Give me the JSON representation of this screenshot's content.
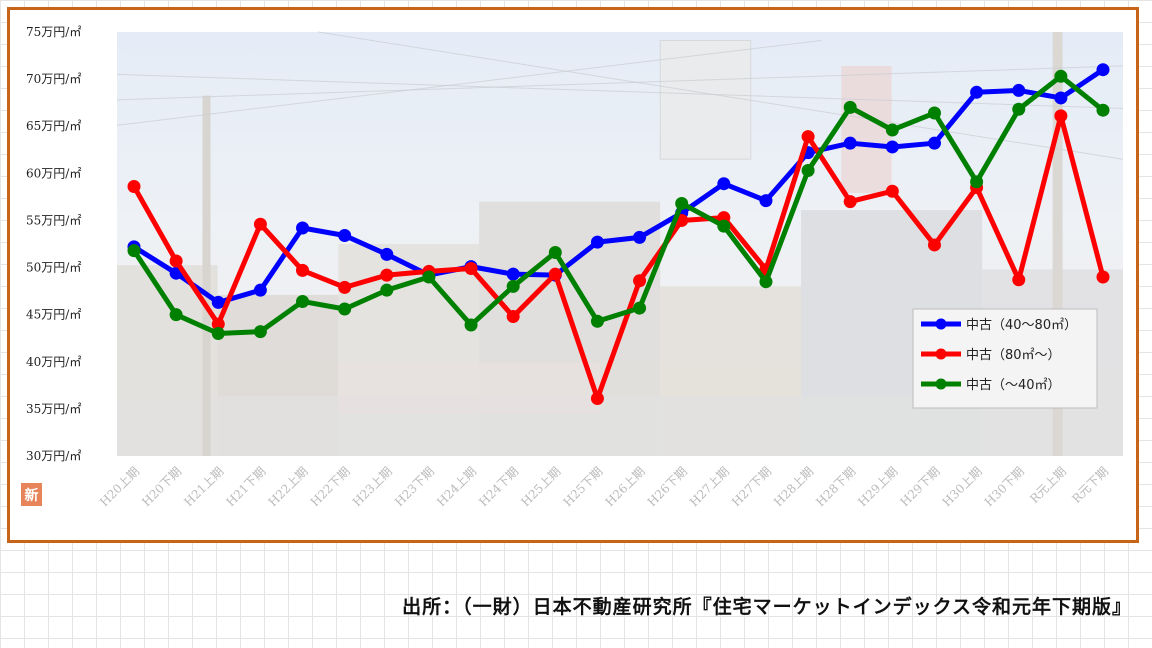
{
  "source_note": "出所：（一財）日本不動産研究所『住宅マーケットインデックス令和元年下期版』",
  "badge_text": "新",
  "colors": {
    "frame": "#c86418",
    "badge": "#e8845a"
  },
  "chart_data": {
    "type": "line",
    "title": "",
    "xlabel": "",
    "ylabel": "",
    "ylim": [
      30,
      75
    ],
    "ytick_labels": [
      "30万円/㎡",
      "35万円/㎡",
      "40万円/㎡",
      "45万円/㎡",
      "50万円/㎡",
      "55万円/㎡",
      "60万円/㎡",
      "65万円/㎡",
      "70万円/㎡",
      "75万円/㎡"
    ],
    "categories": [
      "H20上期",
      "H20下期",
      "H21上期",
      "H21下期",
      "H22上期",
      "H22下期",
      "H23上期",
      "H23下期",
      "H24上期",
      "H24下期",
      "H25上期",
      "H25下期",
      "H26上期",
      "H26下期",
      "H27上期",
      "H27下期",
      "H28上期",
      "H28下期",
      "H29上期",
      "H29下期",
      "H30上期",
      "H30下期",
      "R元上期",
      "R元下期"
    ],
    "grid": false,
    "legend_position": "bottom-right",
    "series": [
      {
        "name": "中古（40〜80㎡）",
        "color": "#0000ff",
        "values": [
          52.2,
          49.4,
          46.3,
          47.6,
          54.2,
          53.4,
          51.4,
          49.2,
          50.1,
          49.3,
          49.2,
          52.7,
          53.2,
          55.8,
          58.9,
          57.1,
          62.2,
          63.2,
          62.8,
          63.2,
          68.6,
          68.8,
          68.0,
          71.0
        ]
      },
      {
        "name": "中古（80㎡〜）",
        "color": "#ff0000",
        "values": [
          58.6,
          50.7,
          44.0,
          54.6,
          49.7,
          47.9,
          49.2,
          49.6,
          49.9,
          44.8,
          49.3,
          36.1,
          48.6,
          55.0,
          55.3,
          49.8,
          63.9,
          57.0,
          58.1,
          52.4,
          58.5,
          48.7,
          66.1,
          49.0
        ]
      },
      {
        "name": "中古（〜40㎡）",
        "color": "#008000",
        "values": [
          51.8,
          45.0,
          43.0,
          43.2,
          46.4,
          45.6,
          47.6,
          49.0,
          43.9,
          48.0,
          51.6,
          44.3,
          45.7,
          56.8,
          54.4,
          48.5,
          60.3,
          67.0,
          64.6,
          66.4,
          59.1,
          66.8,
          70.3,
          66.7
        ]
      }
    ]
  }
}
